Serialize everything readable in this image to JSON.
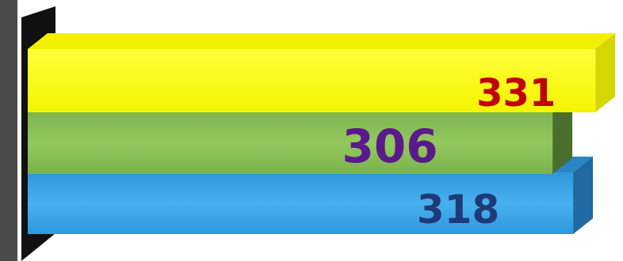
{
  "chart_data": {
    "type": "bar",
    "orientation": "horizontal",
    "style": "3d",
    "categories": [
      "",
      "",
      ""
    ],
    "values": [
      331,
      306,
      318
    ],
    "xlim": [
      0,
      336
    ],
    "grid": false,
    "legend": "none",
    "bar_colors": [
      "#ffff00",
      "#8dc05a",
      "#3aa3e3"
    ],
    "label_colors": [
      "#c00000",
      "#5b1a8b",
      "#1f3a78"
    ]
  }
}
